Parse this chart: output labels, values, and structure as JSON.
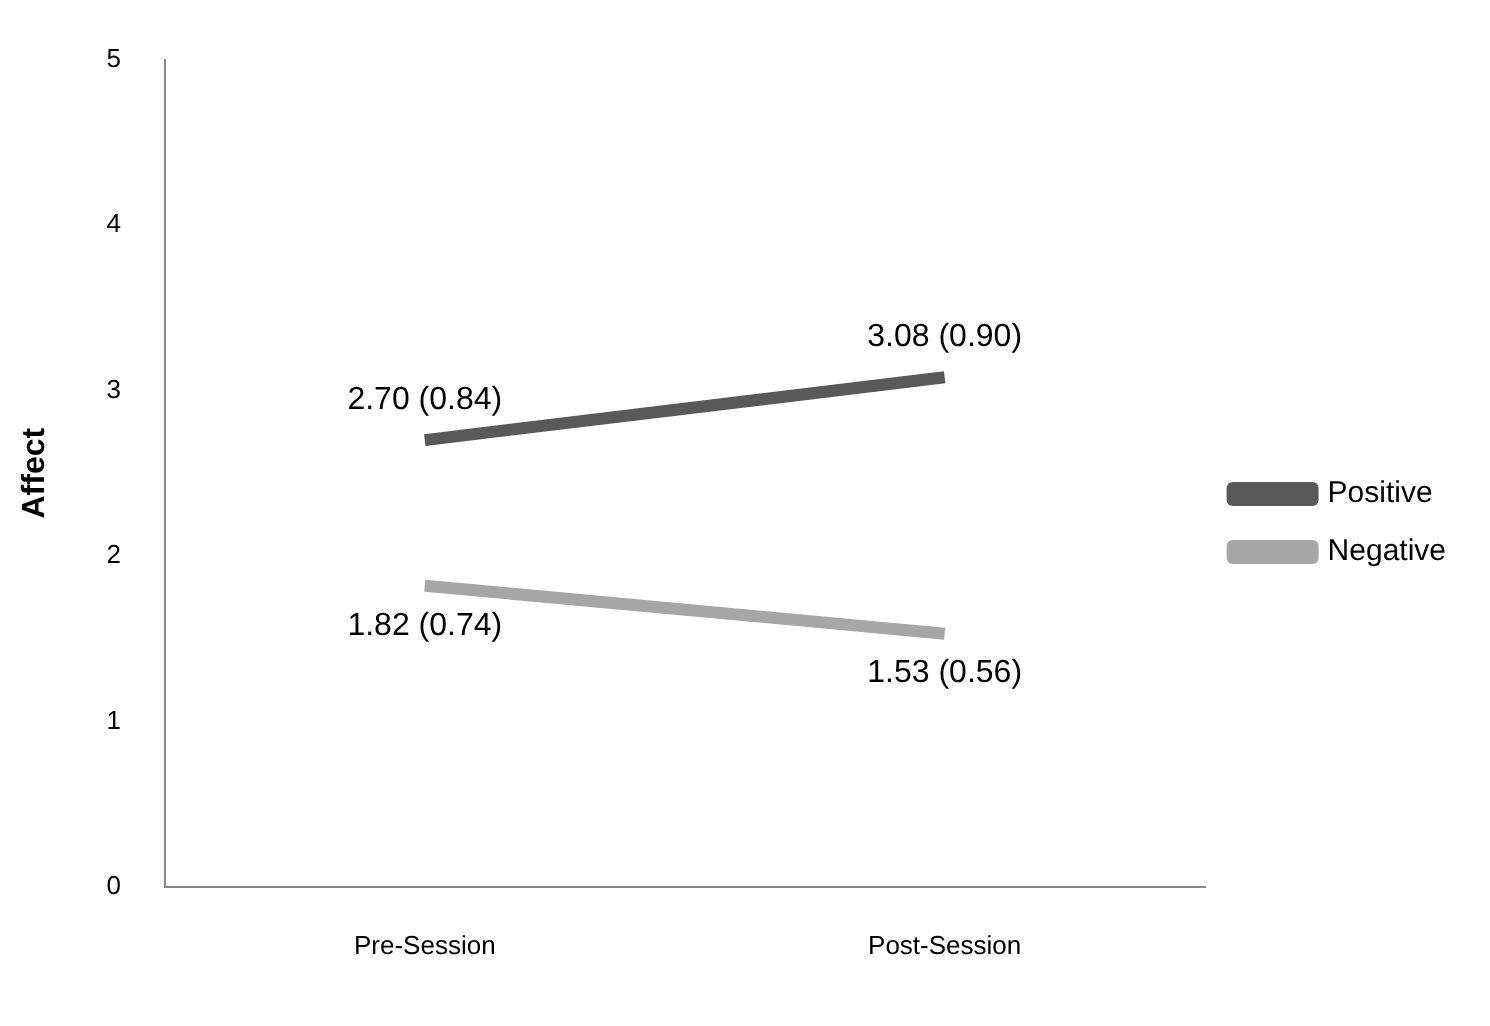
{
  "chart_data": {
    "type": "line",
    "ylabel": "Affect",
    "categories": [
      "Pre-Session",
      "Post-Session"
    ],
    "series": [
      {
        "name": "Positive",
        "color": "#595959",
        "values": [
          2.7,
          3.08
        ],
        "value_labels": [
          "2.70 (0.84)",
          "3.08 (0.90)"
        ]
      },
      {
        "name": "Negative",
        "color": "#a6a6a6",
        "values": [
          1.82,
          1.53
        ],
        "value_labels": [
          "1.82 (0.74)",
          "1.53 (0.56)"
        ]
      }
    ],
    "ylim": [
      0,
      5
    ],
    "yticks": [
      0,
      1,
      2,
      3,
      4,
      5
    ],
    "grid": false,
    "legend": "right",
    "marker": "none",
    "line_style": "solid"
  }
}
